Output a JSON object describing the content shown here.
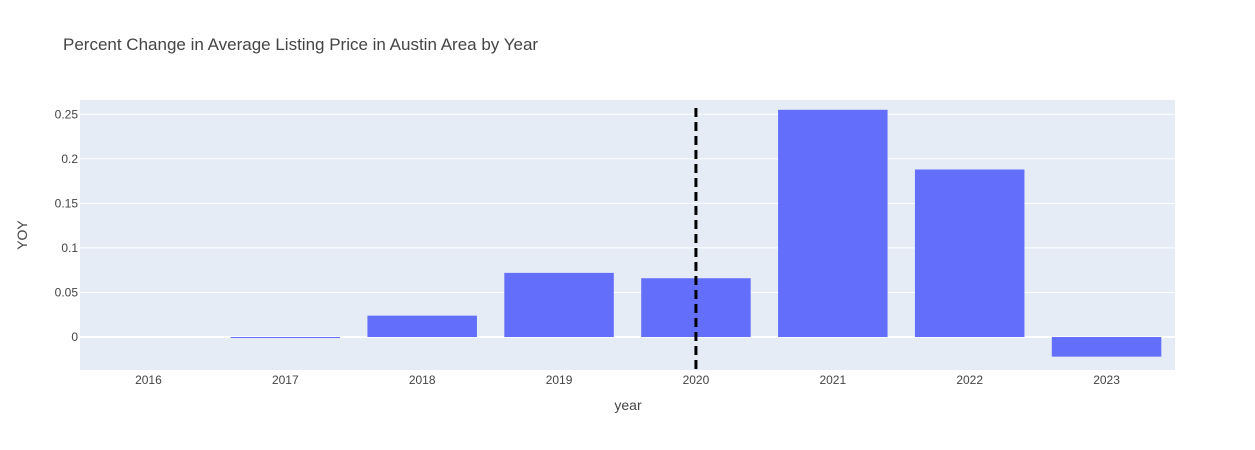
{
  "chart_data": {
    "type": "bar",
    "title": "Percent Change in Average Listing Price in Austin Area by Year",
    "xlabel": "year",
    "ylabel": "YOY",
    "categories": [
      "2016",
      "2017",
      "2018",
      "2019",
      "2020",
      "2021",
      "2022",
      "2023"
    ],
    "values": [
      0.0,
      -0.001,
      0.024,
      0.072,
      0.066,
      0.255,
      0.188,
      -0.022
    ],
    "ylim": [
      -0.037,
      0.266
    ],
    "yticks": [
      0,
      0.05,
      0.1,
      0.15,
      0.2,
      0.25
    ],
    "ytick_labels": [
      "0",
      "0.05",
      "0.1",
      "0.15",
      "0.2",
      "0.25"
    ],
    "grid": true,
    "bar_color": "#636efa",
    "plot_background": "#e5ecf6",
    "reference_line": {
      "x": "2020",
      "style": "dashed",
      "color": "#000000"
    }
  }
}
